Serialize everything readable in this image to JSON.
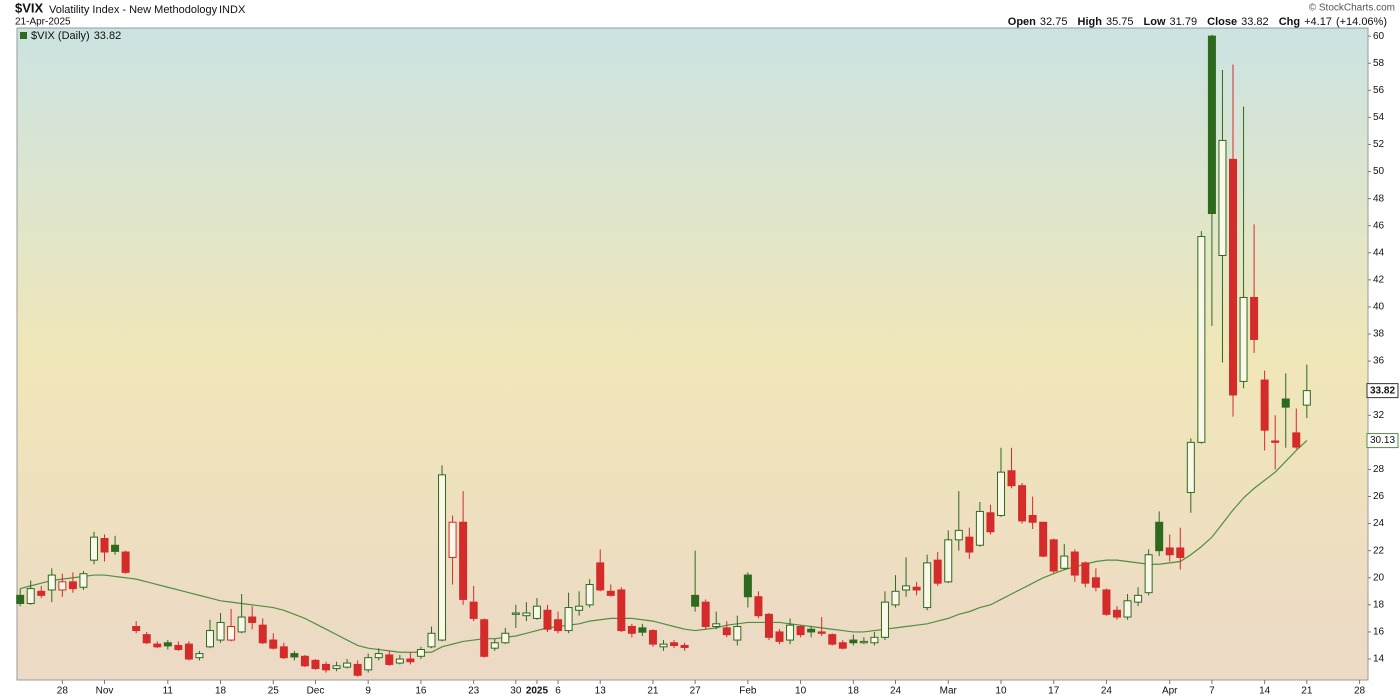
{
  "chart_data": {
    "type": "candlestick",
    "symbol": "$VIX",
    "title": "Volatility Index - New Methodology",
    "exchange": "INDX",
    "date": "21-Apr-2025",
    "copyright": "© StockCharts.com",
    "legend": "$VIX (Daily)",
    "labels": [
      "Open",
      "High",
      "Low",
      "Close",
      "Chg"
    ],
    "change": "+4.17",
    "change_pct": "(+14.06%)",
    "up_color": "#2d6a1e",
    "down_color": "#d42b2b",
    "ma_color": "#4f8f3f",
    "xlim": [
      -0.3,
      127.8
    ],
    "ylim": [
      12.45,
      60.6
    ],
    "yticks": [
      14,
      16,
      18,
      20,
      22,
      24,
      26,
      28,
      30,
      32,
      34,
      36,
      38,
      40,
      42,
      44,
      46,
      48,
      50,
      52,
      54,
      56,
      58,
      60
    ],
    "xticks": [
      {
        "value": 4,
        "label": "28"
      },
      {
        "value": 8,
        "label": "Nov"
      },
      {
        "value": 14,
        "label": "11"
      },
      {
        "value": 19,
        "label": "18"
      },
      {
        "value": 24,
        "label": "25"
      },
      {
        "value": 28,
        "label": "Dec"
      },
      {
        "value": 33,
        "label": "9"
      },
      {
        "value": 38,
        "label": "16"
      },
      {
        "value": 43,
        "label": "23"
      },
      {
        "value": 47,
        "label": "30"
      },
      {
        "value": 49,
        "label": "2025"
      },
      {
        "value": 51,
        "label": "6"
      },
      {
        "value": 55,
        "label": "13"
      },
      {
        "value": 60,
        "label": "21"
      },
      {
        "value": 64,
        "label": "27"
      },
      {
        "value": 69,
        "label": "Feb"
      },
      {
        "value": 74,
        "label": "10"
      },
      {
        "value": 79,
        "label": "18"
      },
      {
        "value": 83,
        "label": "24"
      },
      {
        "value": 88,
        "label": "Mar"
      },
      {
        "value": 93,
        "label": "10"
      },
      {
        "value": 98,
        "label": "17"
      },
      {
        "value": 103,
        "label": "24"
      },
      {
        "value": 109,
        "label": "Apr"
      },
      {
        "value": 113,
        "label": "7"
      },
      {
        "value": 118,
        "label": "14"
      },
      {
        "value": 122,
        "label": "21"
      },
      {
        "value": 127,
        "label": "28"
      }
    ],
    "open": [
      18.7,
      18.1,
      19.0,
      19.1,
      19.1,
      19.7,
      19.3,
      21.3,
      22.9,
      22.4,
      21.9,
      16.4,
      15.8,
      15.1,
      15.2,
      15.0,
      15.1,
      14.1,
      14.9,
      15.4,
      15.4,
      16.0,
      17.1,
      16.5,
      15.4,
      14.9,
      14.4,
      14.2,
      13.9,
      13.6,
      13.3,
      13.4,
      13.6,
      13.2,
      14.1,
      14.3,
      13.7,
      14.0,
      14.2,
      14.9,
      15.4,
      21.5,
      24.1,
      18.2,
      16.9,
      14.8,
      15.2,
      17.3,
      17.2,
      17.0,
      17.6,
      16.9,
      16.1,
      17.6,
      18.0,
      21.1,
      19.0,
      19.1,
      16.4,
      16.3,
      16.1,
      14.9,
      15.2,
      15.0,
      18.7,
      18.2,
      16.4,
      16.3,
      15.4,
      20.2,
      18.6,
      17.3,
      16.0,
      15.4,
      16.4,
      16.2,
      16.0,
      15.8,
      15.2,
      15.4,
      15.2,
      15.2,
      15.6,
      18.0,
      19.1,
      19.3,
      17.8,
      21.3,
      19.7,
      22.8,
      23.0,
      22.4,
      24.8,
      24.6,
      27.9,
      26.8,
      24.6,
      24.1,
      22.8,
      20.7,
      21.9,
      21.1,
      20.0,
      19.1,
      17.6,
      17.1,
      18.2,
      18.9,
      24.1,
      22.2,
      22.2,
      26.3,
      30.0,
      60.0,
      43.8,
      50.9,
      34.5,
      40.7,
      34.6,
      30.1,
      33.2,
      30.7,
      32.75
    ],
    "high": [
      19.2,
      19.8,
      19.4,
      20.7,
      20.3,
      20.4,
      20.5,
      23.4,
      23.2,
      23.1,
      22.0,
      16.8,
      16.0,
      15.3,
      15.4,
      15.3,
      15.3,
      14.6,
      16.9,
      17.4,
      17.7,
      18.8,
      17.9,
      17.0,
      15.9,
      15.2,
      14.6,
      14.3,
      14.0,
      13.8,
      13.8,
      14.0,
      13.9,
      14.4,
      14.8,
      14.6,
      14.3,
      14.5,
      14.9,
      16.4,
      28.3,
      24.6,
      26.4,
      19.4,
      17.0,
      15.5,
      16.3,
      18.0,
      18.2,
      18.5,
      18.0,
      17.5,
      18.9,
      19.0,
      19.9,
      22.1,
      19.5,
      19.3,
      16.6,
      16.6,
      16.2,
      15.4,
      15.4,
      15.2,
      22.0,
      18.4,
      17.5,
      16.8,
      17.2,
      20.4,
      19.0,
      17.4,
      16.2,
      17.0,
      16.5,
      16.4,
      17.1,
      15.9,
      15.4,
      15.8,
      15.6,
      16.0,
      19.0,
      20.2,
      21.5,
      19.7,
      21.7,
      21.9,
      23.5,
      26.4,
      23.7,
      25.6,
      25.4,
      29.6,
      29.6,
      27.0,
      26.0,
      24.1,
      22.9,
      22.5,
      22.1,
      21.2,
      20.7,
      19.2,
      17.9,
      18.8,
      19.3,
      22.1,
      24.9,
      23.2,
      23.7,
      30.3,
      45.6,
      60.1,
      57.5,
      57.9,
      54.8,
      46.1,
      35.3,
      32.0,
      35.1,
      32.5,
      35.75
    ],
    "low": [
      17.9,
      18.0,
      18.5,
      18.2,
      18.6,
      18.9,
      19.1,
      21.0,
      21.2,
      21.7,
      20.3,
      15.9,
      15.1,
      14.8,
      14.7,
      14.6,
      13.9,
      13.9,
      14.8,
      15.2,
      15.3,
      15.9,
      16.2,
      15.1,
      14.7,
      14.0,
      13.9,
      13.4,
      13.2,
      13.0,
      13.1,
      13.3,
      12.7,
      13.0,
      13.9,
      13.5,
      13.6,
      13.6,
      14.0,
      14.8,
      15.3,
      19.5,
      18.0,
      16.8,
      14.1,
      14.6,
      15.1,
      16.3,
      16.8,
      16.9,
      16.0,
      15.9,
      15.9,
      17.2,
      17.8,
      19.0,
      18.6,
      16.0,
      15.6,
      15.7,
      14.9,
      14.6,
      14.8,
      14.6,
      17.5,
      16.2,
      16.2,
      15.6,
      15.0,
      17.8,
      17.0,
      15.4,
      15.1,
      15.1,
      15.6,
      15.6,
      15.7,
      15.0,
      14.7,
      15.0,
      15.1,
      15.0,
      15.4,
      17.8,
      18.6,
      18.7,
      17.6,
      19.4,
      19.6,
      22.0,
      21.4,
      22.3,
      23.2,
      24.5,
      26.6,
      24.0,
      23.6,
      21.5,
      20.3,
      20.6,
      19.7,
      19.3,
      19.0,
      17.2,
      16.9,
      16.9,
      17.9,
      18.7,
      21.6,
      21.2,
      20.6,
      24.8,
      29.9,
      38.6,
      35.9,
      31.9,
      34.0,
      36.6,
      29.4,
      28.0,
      29.6,
      29.5,
      31.79
    ],
    "close": [
      18.1,
      19.2,
      18.7,
      20.2,
      19.7,
      19.2,
      20.3,
      23.0,
      21.9,
      21.95,
      20.4,
      16.1,
      15.2,
      14.9,
      14.97,
      14.7,
      14.0,
      14.4,
      16.1,
      16.7,
      16.4,
      17.1,
      16.7,
      15.2,
      14.8,
      14.1,
      14.15,
      13.5,
      13.3,
      13.2,
      13.5,
      13.7,
      12.8,
      14.1,
      14.4,
      13.6,
      14.0,
      13.8,
      14.7,
      15.9,
      27.6,
      24.1,
      18.4,
      17.0,
      14.2,
      15.2,
      15.9,
      17.4,
      17.4,
      17.9,
      16.2,
      16.1,
      17.8,
      17.9,
      19.5,
      19.1,
      18.7,
      16.1,
      15.9,
      15.98,
      15.1,
      15.1,
      15.0,
      14.85,
      17.9,
      16.4,
      16.6,
      15.8,
      16.4,
      18.6,
      17.2,
      15.6,
      15.3,
      16.5,
      15.8,
      16.0,
      15.9,
      15.1,
      14.8,
      15.2,
      15.3,
      15.6,
      18.2,
      19.0,
      19.4,
      19.1,
      21.1,
      19.6,
      22.8,
      23.5,
      21.9,
      24.9,
      23.4,
      27.8,
      26.8,
      24.2,
      24.1,
      21.6,
      20.5,
      21.6,
      20.2,
      19.6,
      19.3,
      17.3,
      17.1,
      18.3,
      18.7,
      21.7,
      22.0,
      21.7,
      21.5,
      30.0,
      45.2,
      46.9,
      52.3,
      33.5,
      40.7,
      37.6,
      30.9,
      30.0,
      32.6,
      29.65,
      33.82
    ],
    "ma": [
      19.2,
      19.4,
      19.6,
      19.8,
      19.9,
      20.0,
      20.1,
      20.2,
      20.2,
      20.1,
      20.0,
      19.9,
      19.7,
      19.5,
      19.3,
      19.1,
      18.9,
      18.7,
      18.5,
      18.3,
      18.2,
      18.1,
      18.0,
      17.9,
      17.8,
      17.6,
      17.3,
      17.0,
      16.6,
      16.2,
      15.8,
      15.4,
      15.0,
      14.8,
      14.7,
      14.6,
      14.5,
      14.5,
      14.5,
      14.5,
      14.9,
      15.1,
      15.3,
      15.4,
      15.5,
      15.5,
      15.6,
      15.7,
      15.9,
      16.1,
      16.3,
      16.4,
      16.5,
      16.6,
      16.8,
      16.9,
      17.0,
      17.0,
      17.0,
      16.9,
      16.8,
      16.6,
      16.4,
      16.2,
      16.1,
      16.2,
      16.3,
      16.5,
      16.6,
      16.7,
      16.7,
      16.7,
      16.7,
      16.6,
      16.5,
      16.4,
      16.3,
      16.2,
      16.1,
      16.0,
      16.0,
      16.1,
      16.2,
      16.3,
      16.4,
      16.5,
      16.6,
      16.8,
      17.0,
      17.3,
      17.5,
      17.8,
      18.0,
      18.4,
      18.8,
      19.2,
      19.6,
      20.0,
      20.3,
      20.6,
      20.8,
      21.0,
      21.2,
      21.3,
      21.3,
      21.2,
      21.1,
      21.0,
      21.0,
      21.1,
      21.2,
      21.7,
      22.3,
      23.0,
      24.0,
      25.0,
      25.9,
      26.6,
      27.2,
      27.8,
      28.6,
      29.4,
      30.13
    ]
  }
}
